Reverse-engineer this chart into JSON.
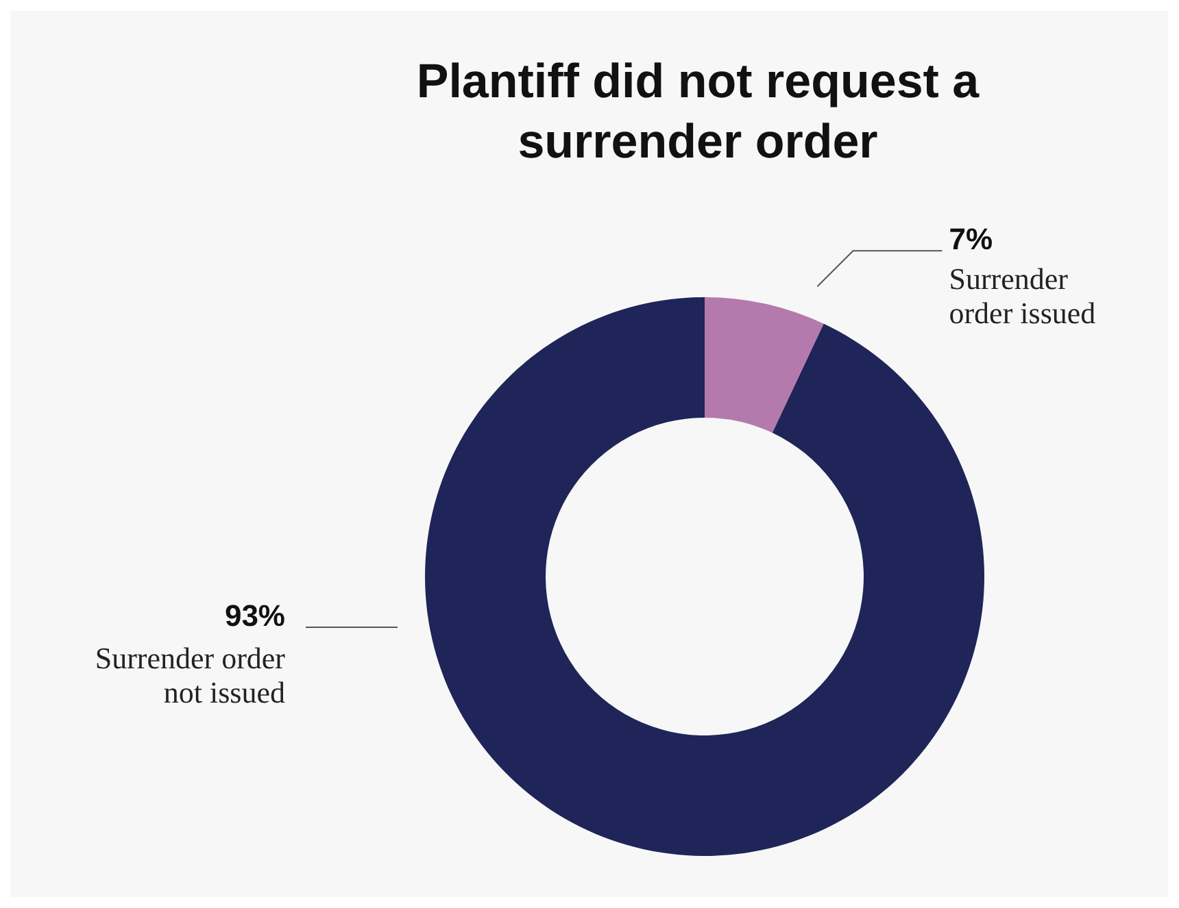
{
  "chart_data": {
    "type": "donut",
    "title": "Plantiff did not request a surrender order",
    "categories": [
      "Surrender order issued",
      "Surrender order not issued"
    ],
    "values": [
      7,
      93
    ],
    "value_labels": [
      "7%",
      "93%"
    ],
    "colors": [
      "#b57aad",
      "#1f2558"
    ]
  }
}
